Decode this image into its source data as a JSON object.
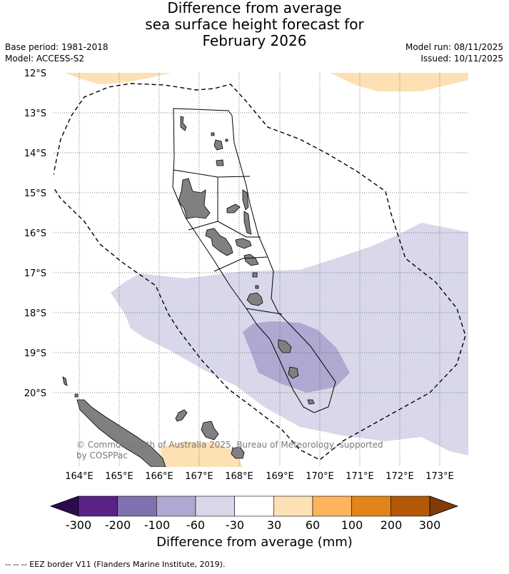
{
  "title_lines": [
    "Difference from average",
    "sea surface height forecast for",
    "February 2026"
  ],
  "base_period": "Base period: 1981-2018",
  "model": "Model: ACCESS-S2",
  "model_run": "Model run: 08/11/2025",
  "issued": "Issued: 10/11/2025",
  "lat_labels": [
    "12°S",
    "13°S",
    "14°S",
    "15°S",
    "16°S",
    "17°S",
    "18°S",
    "19°S",
    "20°S"
  ],
  "lon_labels": [
    "164°E",
    "165°E",
    "166°E",
    "167°E",
    "168°E",
    "169°E",
    "170°E",
    "171°E",
    "172°E",
    "173°E"
  ],
  "copyright": "© Commonwealth of Australia 2025, Bureau of Meteorology, supported by COSPPac",
  "colorbar": {
    "ticks": [
      "-300",
      "-200",
      "-100",
      "-60",
      "-30",
      "30",
      "60",
      "100",
      "200",
      "300"
    ],
    "colors": [
      "#2d0a4e",
      "#5a2286",
      "#8072ae",
      "#b0a8d0",
      "#d8d8ea",
      "#ffffff",
      "#fde0b4",
      "#fdb45c",
      "#e2841a",
      "#b35806",
      "#7f3b08"
    ],
    "title": "Difference from average (mm)"
  },
  "footer": "-- -- -- EEZ border V11 (Flanders Marine Institute, 2019)."
}
